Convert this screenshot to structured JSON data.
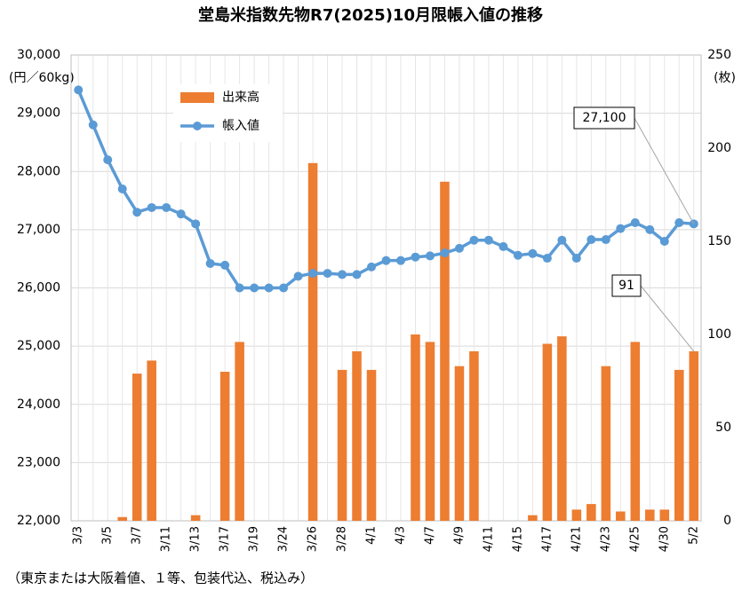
{
  "chart_data": {
    "type": "bar-line",
    "title": "堂島米指数先物R7(2025)10月限帳入値の推移",
    "ylabel": "(円／60kg)",
    "y2label": "(枚)",
    "footnote": "（東京または大阪着値、１等、包装代込、税込み）",
    "categories": [
      "3/3",
      null,
      "3/5",
      null,
      "3/7",
      null,
      "3/11",
      null,
      "3/13",
      null,
      "3/17",
      null,
      "3/19",
      null,
      "3/24",
      null,
      "3/26",
      null,
      "3/28",
      null,
      "4/1",
      null,
      "4/3",
      null,
      "4/7",
      null,
      "4/9",
      null,
      "4/11",
      null,
      "4/15",
      null,
      "4/17",
      null,
      "4/21",
      null,
      "4/23",
      null,
      "4/25",
      null,
      "4/30",
      null,
      "5/2"
    ],
    "series": [
      {
        "name": "出来高",
        "type": "bar",
        "axis": "y2",
        "color": "#ed7d31",
        "values": [
          0,
          0,
          0,
          2,
          79,
          86,
          0,
          0,
          3,
          0,
          80,
          96,
          0,
          0,
          0,
          0,
          192,
          0,
          81,
          91,
          81,
          0,
          0,
          100,
          96,
          182,
          83,
          91,
          0,
          0,
          0,
          3,
          95,
          99,
          6,
          9,
          83,
          5,
          96,
          6,
          6,
          81,
          91
        ],
        "value_labels": [
          null,
          null,
          null,
          null,
          null,
          null,
          null,
          null,
          null,
          null,
          null,
          null,
          null,
          null,
          null,
          null,
          null,
          null,
          null,
          null,
          null,
          null,
          null,
          null,
          null,
          null,
          null,
          null,
          null,
          null,
          null,
          null,
          null,
          null,
          null,
          null,
          null,
          null,
          null,
          null,
          null,
          null,
          "91"
        ]
      },
      {
        "name": "帳入値",
        "type": "line",
        "axis": "y",
        "color": "#5b9bd5",
        "values": [
          29400,
          28800,
          28200,
          27700,
          27300,
          27380,
          27380,
          27270,
          27100,
          26420,
          26390,
          26000,
          26000,
          26000,
          26000,
          26200,
          26250,
          26250,
          26230,
          26230,
          26360,
          26470,
          26470,
          26530,
          26550,
          26600,
          26680,
          26820,
          26820,
          26710,
          26560,
          26590,
          26510,
          26820,
          26510,
          26830,
          26830,
          27020,
          27120,
          27000,
          26800,
          27120,
          27100
        ],
        "value_labels": [
          null,
          null,
          null,
          null,
          null,
          null,
          null,
          null,
          null,
          null,
          null,
          null,
          null,
          null,
          null,
          null,
          null,
          null,
          null,
          null,
          null,
          null,
          null,
          null,
          null,
          null,
          null,
          null,
          null,
          null,
          null,
          null,
          null,
          null,
          null,
          null,
          null,
          null,
          null,
          null,
          null,
          null,
          "27,100"
        ]
      }
    ],
    "ylim": [
      22000,
      30000
    ],
    "yticks": [
      {
        "value": 22000,
        "label": "22,000"
      },
      {
        "value": 23000,
        "label": "23,000"
      },
      {
        "value": 24000,
        "label": "24,000"
      },
      {
        "value": 25000,
        "label": "25,000"
      },
      {
        "value": 26000,
        "label": "26,000"
      },
      {
        "value": 27000,
        "label": "27,000"
      },
      {
        "value": 28000,
        "label": "28,000"
      },
      {
        "value": 29000,
        "label": "29,000"
      },
      {
        "value": 30000,
        "label": "30,000"
      }
    ],
    "y2lim": [
      0,
      250
    ],
    "y2ticks": [
      0,
      50,
      100,
      150,
      200,
      250
    ],
    "grid": true,
    "legend": "top-left"
  }
}
